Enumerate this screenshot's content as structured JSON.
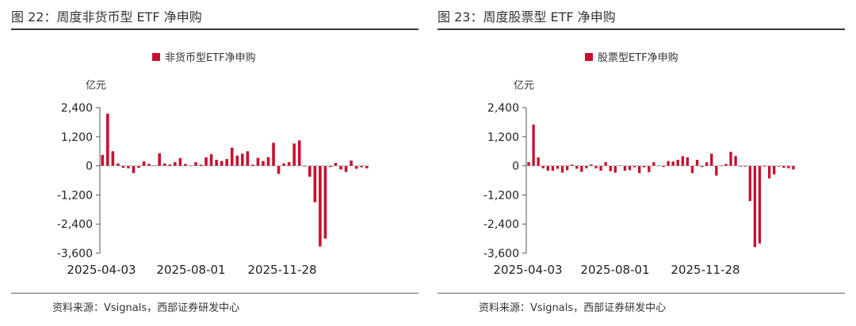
{
  "panels": [
    {
      "figure_title": "图 22：周度非货币型 ETF 净申购",
      "source": "资料来源：Vsignals，西部证券研发中心"
    },
    {
      "figure_title": "图 23：周度股票型 ETF 净申购",
      "source": "资料来源：Vsignals，西部证券研发中心"
    }
  ],
  "chart_data": [
    {
      "type": "bar",
      "legend": "非货币型ETF净申购",
      "unit": "亿元",
      "color": "#c8102e",
      "ylim": [
        -3600,
        2400
      ],
      "yticks": [
        "2,400",
        "1,200",
        "0",
        "-1,200",
        "-2,400",
        "-3,600"
      ],
      "xticks": [
        "2025-04-03",
        "2025-08-01",
        "2025-11-28"
      ],
      "values": [
        450,
        2150,
        600,
        100,
        -80,
        -100,
        -300,
        -80,
        180,
        80,
        20,
        520,
        100,
        60,
        150,
        320,
        80,
        20,
        150,
        50,
        350,
        480,
        250,
        200,
        280,
        750,
        420,
        500,
        600,
        50,
        330,
        200,
        360,
        950,
        -330,
        100,
        150,
        920,
        1050,
        -30,
        -450,
        -1500,
        -3320,
        -3000,
        -50,
        120,
        -150,
        -250,
        220,
        -120,
        -60,
        -100
      ]
    },
    {
      "type": "bar",
      "legend": "股票型ETF净申购",
      "unit": "亿元",
      "color": "#c8102e",
      "ylim": [
        -3600,
        2400
      ],
      "yticks": [
        "2,400",
        "1,200",
        "0",
        "-1,200",
        "-2,400",
        "-3,600"
      ],
      "xticks": [
        "2025-04-03",
        "2025-08-01",
        "2025-11-28"
      ],
      "values": [
        150,
        1700,
        350,
        -100,
        -200,
        -200,
        -120,
        -280,
        -180,
        50,
        -120,
        -250,
        -100,
        60,
        -100,
        -200,
        150,
        -220,
        -280,
        20,
        -200,
        -180,
        -60,
        -300,
        -60,
        -260,
        150,
        20,
        -50,
        200,
        180,
        250,
        400,
        350,
        -300,
        250,
        -50,
        150,
        500,
        -400,
        20,
        80,
        580,
        400,
        -20,
        0,
        -1450,
        -3350,
        -3200,
        -30,
        -520,
        -350,
        -20,
        -80,
        -100,
        -150
      ]
    }
  ]
}
